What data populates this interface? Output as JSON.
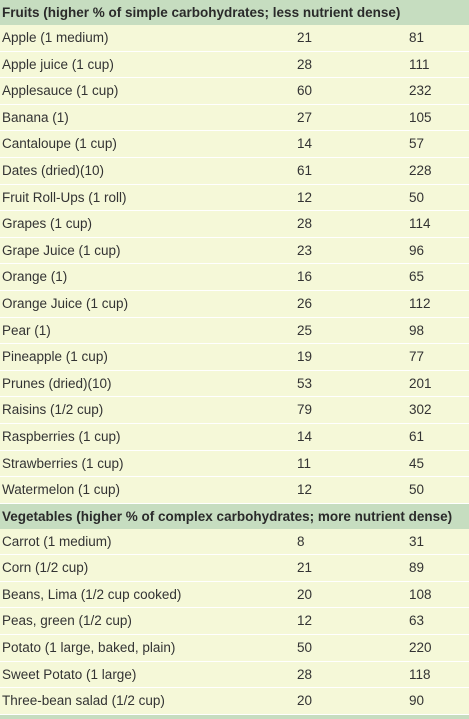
{
  "sections": [
    {
      "header": "Fruits (higher % of simple carbohydrates; less nutrient dense)",
      "rows": [
        {
          "food": "Apple (1 medium)",
          "carbs": "21",
          "calories": "81"
        },
        {
          "food": "Apple juice (1 cup)",
          "carbs": "28",
          "calories": "111"
        },
        {
          "food": "Applesauce (1 cup)",
          "carbs": "60",
          "calories": "232"
        },
        {
          "food": "Banana (1)",
          "carbs": "27",
          "calories": "105"
        },
        {
          "food": "Cantaloupe (1 cup)",
          "carbs": "14",
          "calories": "57"
        },
        {
          "food": "Dates (dried)(10)",
          "carbs": "61",
          "calories": "228"
        },
        {
          "food": "Fruit Roll-Ups (1 roll)",
          "carbs": "12",
          "calories": "50"
        },
        {
          "food": "Grapes (1 cup)",
          "carbs": "28",
          "calories": "114"
        },
        {
          "food": "Grape Juice (1 cup)",
          "carbs": "23",
          "calories": "96"
        },
        {
          "food": "Orange (1)",
          "carbs": "16",
          "calories": "65"
        },
        {
          "food": "Orange Juice (1 cup)",
          "carbs": "26",
          "calories": "112"
        },
        {
          "food": "Pear (1)",
          "carbs": "25",
          "calories": "98"
        },
        {
          "food": "Pineapple (1 cup)",
          "carbs": "19",
          "calories": "77"
        },
        {
          "food": "Prunes (dried)(10)",
          "carbs": "53",
          "calories": "201"
        },
        {
          "food": "Raisins (1/2 cup)",
          "carbs": "79",
          "calories": "302"
        },
        {
          "food": "Raspberries (1 cup)",
          "carbs": "14",
          "calories": "61"
        },
        {
          "food": "Strawberries (1 cup)",
          "carbs": "11",
          "calories": "45"
        },
        {
          "food": "Watermelon (1 cup)",
          "carbs": "12",
          "calories": "50"
        }
      ]
    },
    {
      "header": "Vegetables (higher % of complex carbohydrates; more nutrient dense)",
      "rows": [
        {
          "food": "Carrot (1 medium)",
          "carbs": "8",
          "calories": "31"
        },
        {
          "food": "Corn (1/2 cup)",
          "carbs": "21",
          "calories": "89"
        },
        {
          "food": "Beans, Lima (1/2 cup cooked)",
          "carbs": "20",
          "calories": "108"
        },
        {
          "food": "Peas, green (1/2 cup)",
          "carbs": "12",
          "calories": "63"
        },
        {
          "food": "Potato (1 large, baked, plain)",
          "carbs": "50",
          "calories": "220"
        },
        {
          "food": "Sweet Potato (1 large)",
          "carbs": "28",
          "calories": "118"
        },
        {
          "food": "Three-bean salad (1/2 cup)",
          "carbs": "20",
          "calories": "90"
        }
      ]
    }
  ]
}
